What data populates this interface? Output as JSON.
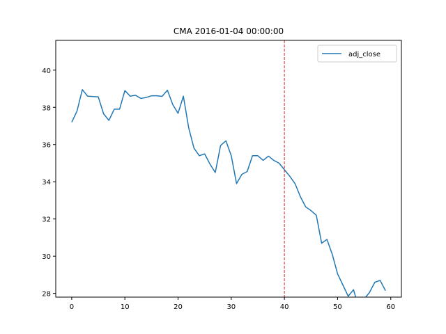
{
  "chart_data": {
    "type": "line",
    "title": "CMA 2016-01-04 00:00:00",
    "xlabel": "",
    "ylabel": "",
    "xlim": [
      -3,
      62
    ],
    "ylim": [
      27.8,
      41.6
    ],
    "xticks": [
      0,
      10,
      20,
      30,
      40,
      50,
      60
    ],
    "yticks": [
      28,
      30,
      32,
      34,
      36,
      38,
      40
    ],
    "grid": false,
    "legend": "top-right",
    "vline": {
      "x": 40,
      "color": "#d62728",
      "style": "dashed"
    },
    "series": [
      {
        "name": "adj_close",
        "color": "#1f77b4",
        "x": [
          0,
          1,
          2,
          3,
          4,
          5,
          6,
          7,
          8,
          9,
          10,
          11,
          12,
          13,
          14,
          15,
          16,
          17,
          18,
          19,
          20,
          21,
          22,
          23,
          24,
          25,
          26,
          27,
          28,
          29,
          30,
          31,
          32,
          33,
          34,
          35,
          36,
          37,
          38,
          39,
          40,
          41,
          42,
          43,
          44,
          45,
          46,
          47,
          48,
          49,
          50,
          51,
          52,
          53,
          54,
          55,
          56,
          57,
          58,
          59
        ],
        "y": [
          37.2,
          37.8,
          38.95,
          38.6,
          38.58,
          38.56,
          37.65,
          37.3,
          37.9,
          37.9,
          38.9,
          38.6,
          38.65,
          38.48,
          38.53,
          38.62,
          38.62,
          38.59,
          38.92,
          38.15,
          37.68,
          38.6,
          36.9,
          35.8,
          35.4,
          35.5,
          34.95,
          34.5,
          35.95,
          36.2,
          35.4,
          33.9,
          34.4,
          34.55,
          35.4,
          35.4,
          35.15,
          35.38,
          35.15,
          35.0,
          34.65,
          34.3,
          33.9,
          33.2,
          32.65,
          32.45,
          32.2,
          30.7,
          30.9,
          30.1,
          29.05,
          28.45,
          27.85,
          28.2,
          27.2,
          27.7,
          28.05,
          28.6,
          28.7,
          28.15
        ]
      }
    ]
  }
}
